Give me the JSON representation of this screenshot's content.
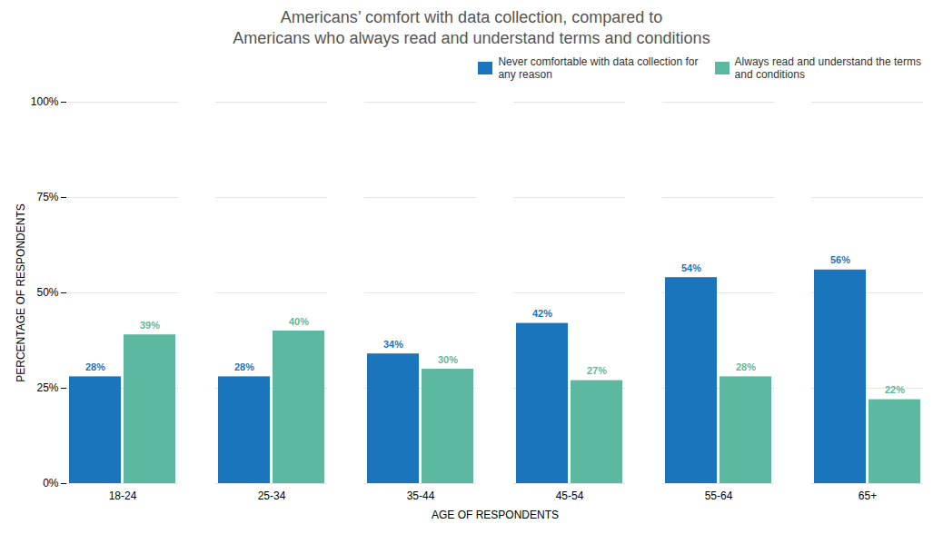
{
  "chart_data": {
    "type": "bar",
    "title": "Americans’ comfort with data collection, compared to\nAmericans who always read and understand terms and conditions",
    "categories": [
      "18-24",
      "25-34",
      "35-44",
      "45-54",
      "55-64",
      "65+"
    ],
    "series": [
      {
        "name": "Never comfortable with data collection for\nany reason",
        "color": "#1a75bc",
        "values": [
          28,
          28,
          34,
          42,
          54,
          56
        ],
        "value_labels": [
          "28%",
          "28%",
          "34%",
          "42%",
          "54%",
          "56%"
        ]
      },
      {
        "name": "Always read and understand the terms\nand conditions",
        "color": "#5cb8a0",
        "values": [
          39,
          40,
          30,
          27,
          28,
          22
        ],
        "value_labels": [
          "39%",
          "40%",
          "30%",
          "27%",
          "28%",
          "22%"
        ]
      }
    ],
    "xlabel": "AGE OF RESPONDENTS",
    "ylabel": "PERCENTAGE OF RESPONDENTS",
    "ylim": [
      0,
      100
    ],
    "yticks": [
      {
        "value": 0,
        "label": "0%"
      },
      {
        "value": 25,
        "label": "25%"
      },
      {
        "value": 50,
        "label": "50%"
      },
      {
        "value": 75,
        "label": "75%"
      },
      {
        "value": 100,
        "label": "100%"
      }
    ],
    "grid": true,
    "legend": "upper right",
    "data_labels": true
  }
}
